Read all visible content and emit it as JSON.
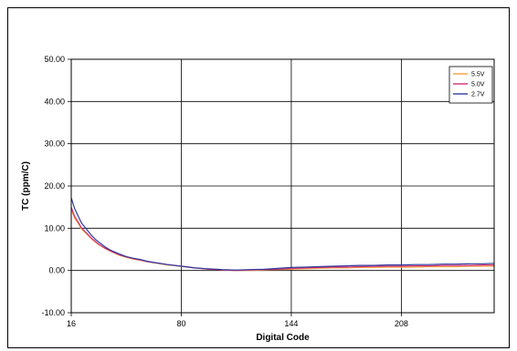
{
  "chart_data": {
    "type": "line",
    "title": "",
    "xlabel": "Digital Code",
    "ylabel": "TC (ppm/C)",
    "xlim": [
      16,
      262
    ],
    "ylim": [
      -10,
      50
    ],
    "x_ticks": [
      16,
      80,
      144,
      208
    ],
    "x_tick_labels": [
      "16",
      "80",
      "144",
      "208"
    ],
    "y_ticks": [
      -10,
      0,
      10,
      20,
      30,
      40,
      50
    ],
    "y_tick_labels": [
      "-10.00",
      "0.00",
      "10.00",
      "20.00",
      "30.00",
      "40.00",
      "50.00"
    ],
    "grid": true,
    "legend_position": "top-right",
    "series": [
      {
        "name": "5.5V",
        "color": "#f4a03c",
        "x": [
          16,
          18,
          20,
          22,
          24,
          26,
          28,
          30,
          32,
          34,
          36,
          38,
          40,
          44,
          48,
          52,
          56,
          60,
          64,
          72,
          80,
          88,
          96,
          104,
          112,
          120,
          128,
          136,
          144,
          152,
          160,
          168,
          176,
          184,
          192,
          200,
          208,
          216,
          224,
          232,
          240,
          248,
          256,
          262
        ],
        "y": [
          14.5,
          12.3,
          11.2,
          9.8,
          9.0,
          8.2,
          7.4,
          6.7,
          6.1,
          5.6,
          5.1,
          4.7,
          4.3,
          3.6,
          3.1,
          2.7,
          2.4,
          2.1,
          1.8,
          1.3,
          1.0,
          0.6,
          0.3,
          0.1,
          0.0,
          0.0,
          0.1,
          0.2,
          0.3,
          0.4,
          0.5,
          0.6,
          0.6,
          0.7,
          0.7,
          0.8,
          0.8,
          0.8,
          0.9,
          0.9,
          0.9,
          1.0,
          1.0,
          1.0
        ]
      },
      {
        "name": "5.0V",
        "color": "#d0307a",
        "x": [
          16,
          18,
          20,
          22,
          24,
          26,
          28,
          30,
          32,
          34,
          36,
          38,
          40,
          44,
          48,
          52,
          56,
          60,
          64,
          72,
          80,
          88,
          96,
          104,
          112,
          120,
          128,
          136,
          144,
          152,
          160,
          168,
          176,
          184,
          192,
          200,
          208,
          216,
          224,
          232,
          240,
          248,
          256,
          262
        ],
        "y": [
          15.0,
          12.8,
          11.5,
          10.1,
          9.2,
          8.4,
          7.5,
          6.9,
          6.2,
          5.7,
          5.2,
          4.8,
          4.4,
          3.7,
          3.2,
          2.8,
          2.5,
          2.1,
          1.9,
          1.4,
          1.0,
          0.6,
          0.3,
          0.1,
          0.0,
          0.1,
          0.2,
          0.3,
          0.5,
          0.6,
          0.7,
          0.8,
          0.8,
          0.9,
          1.0,
          1.0,
          1.0,
          1.1,
          1.1,
          1.2,
          1.2,
          1.2,
          1.3,
          1.3
        ]
      },
      {
        "name": "2.7V",
        "color": "#2f3a9e",
        "x": [
          16,
          18,
          20,
          22,
          24,
          26,
          28,
          30,
          32,
          34,
          36,
          38,
          40,
          44,
          48,
          52,
          56,
          60,
          64,
          72,
          80,
          88,
          96,
          104,
          112,
          120,
          128,
          136,
          144,
          152,
          160,
          168,
          176,
          184,
          192,
          200,
          208,
          216,
          224,
          232,
          240,
          248,
          256,
          262
        ],
        "y": [
          17.2,
          14.6,
          12.9,
          11.2,
          10.2,
          9.2,
          8.2,
          7.4,
          6.7,
          6.1,
          5.5,
          5.0,
          4.6,
          3.9,
          3.3,
          2.9,
          2.6,
          2.2,
          1.9,
          1.4,
          1.0,
          0.6,
          0.4,
          0.2,
          0.1,
          0.2,
          0.3,
          0.5,
          0.7,
          0.8,
          0.9,
          1.0,
          1.1,
          1.2,
          1.2,
          1.3,
          1.3,
          1.4,
          1.4,
          1.5,
          1.5,
          1.6,
          1.6,
          1.7
        ]
      }
    ]
  }
}
